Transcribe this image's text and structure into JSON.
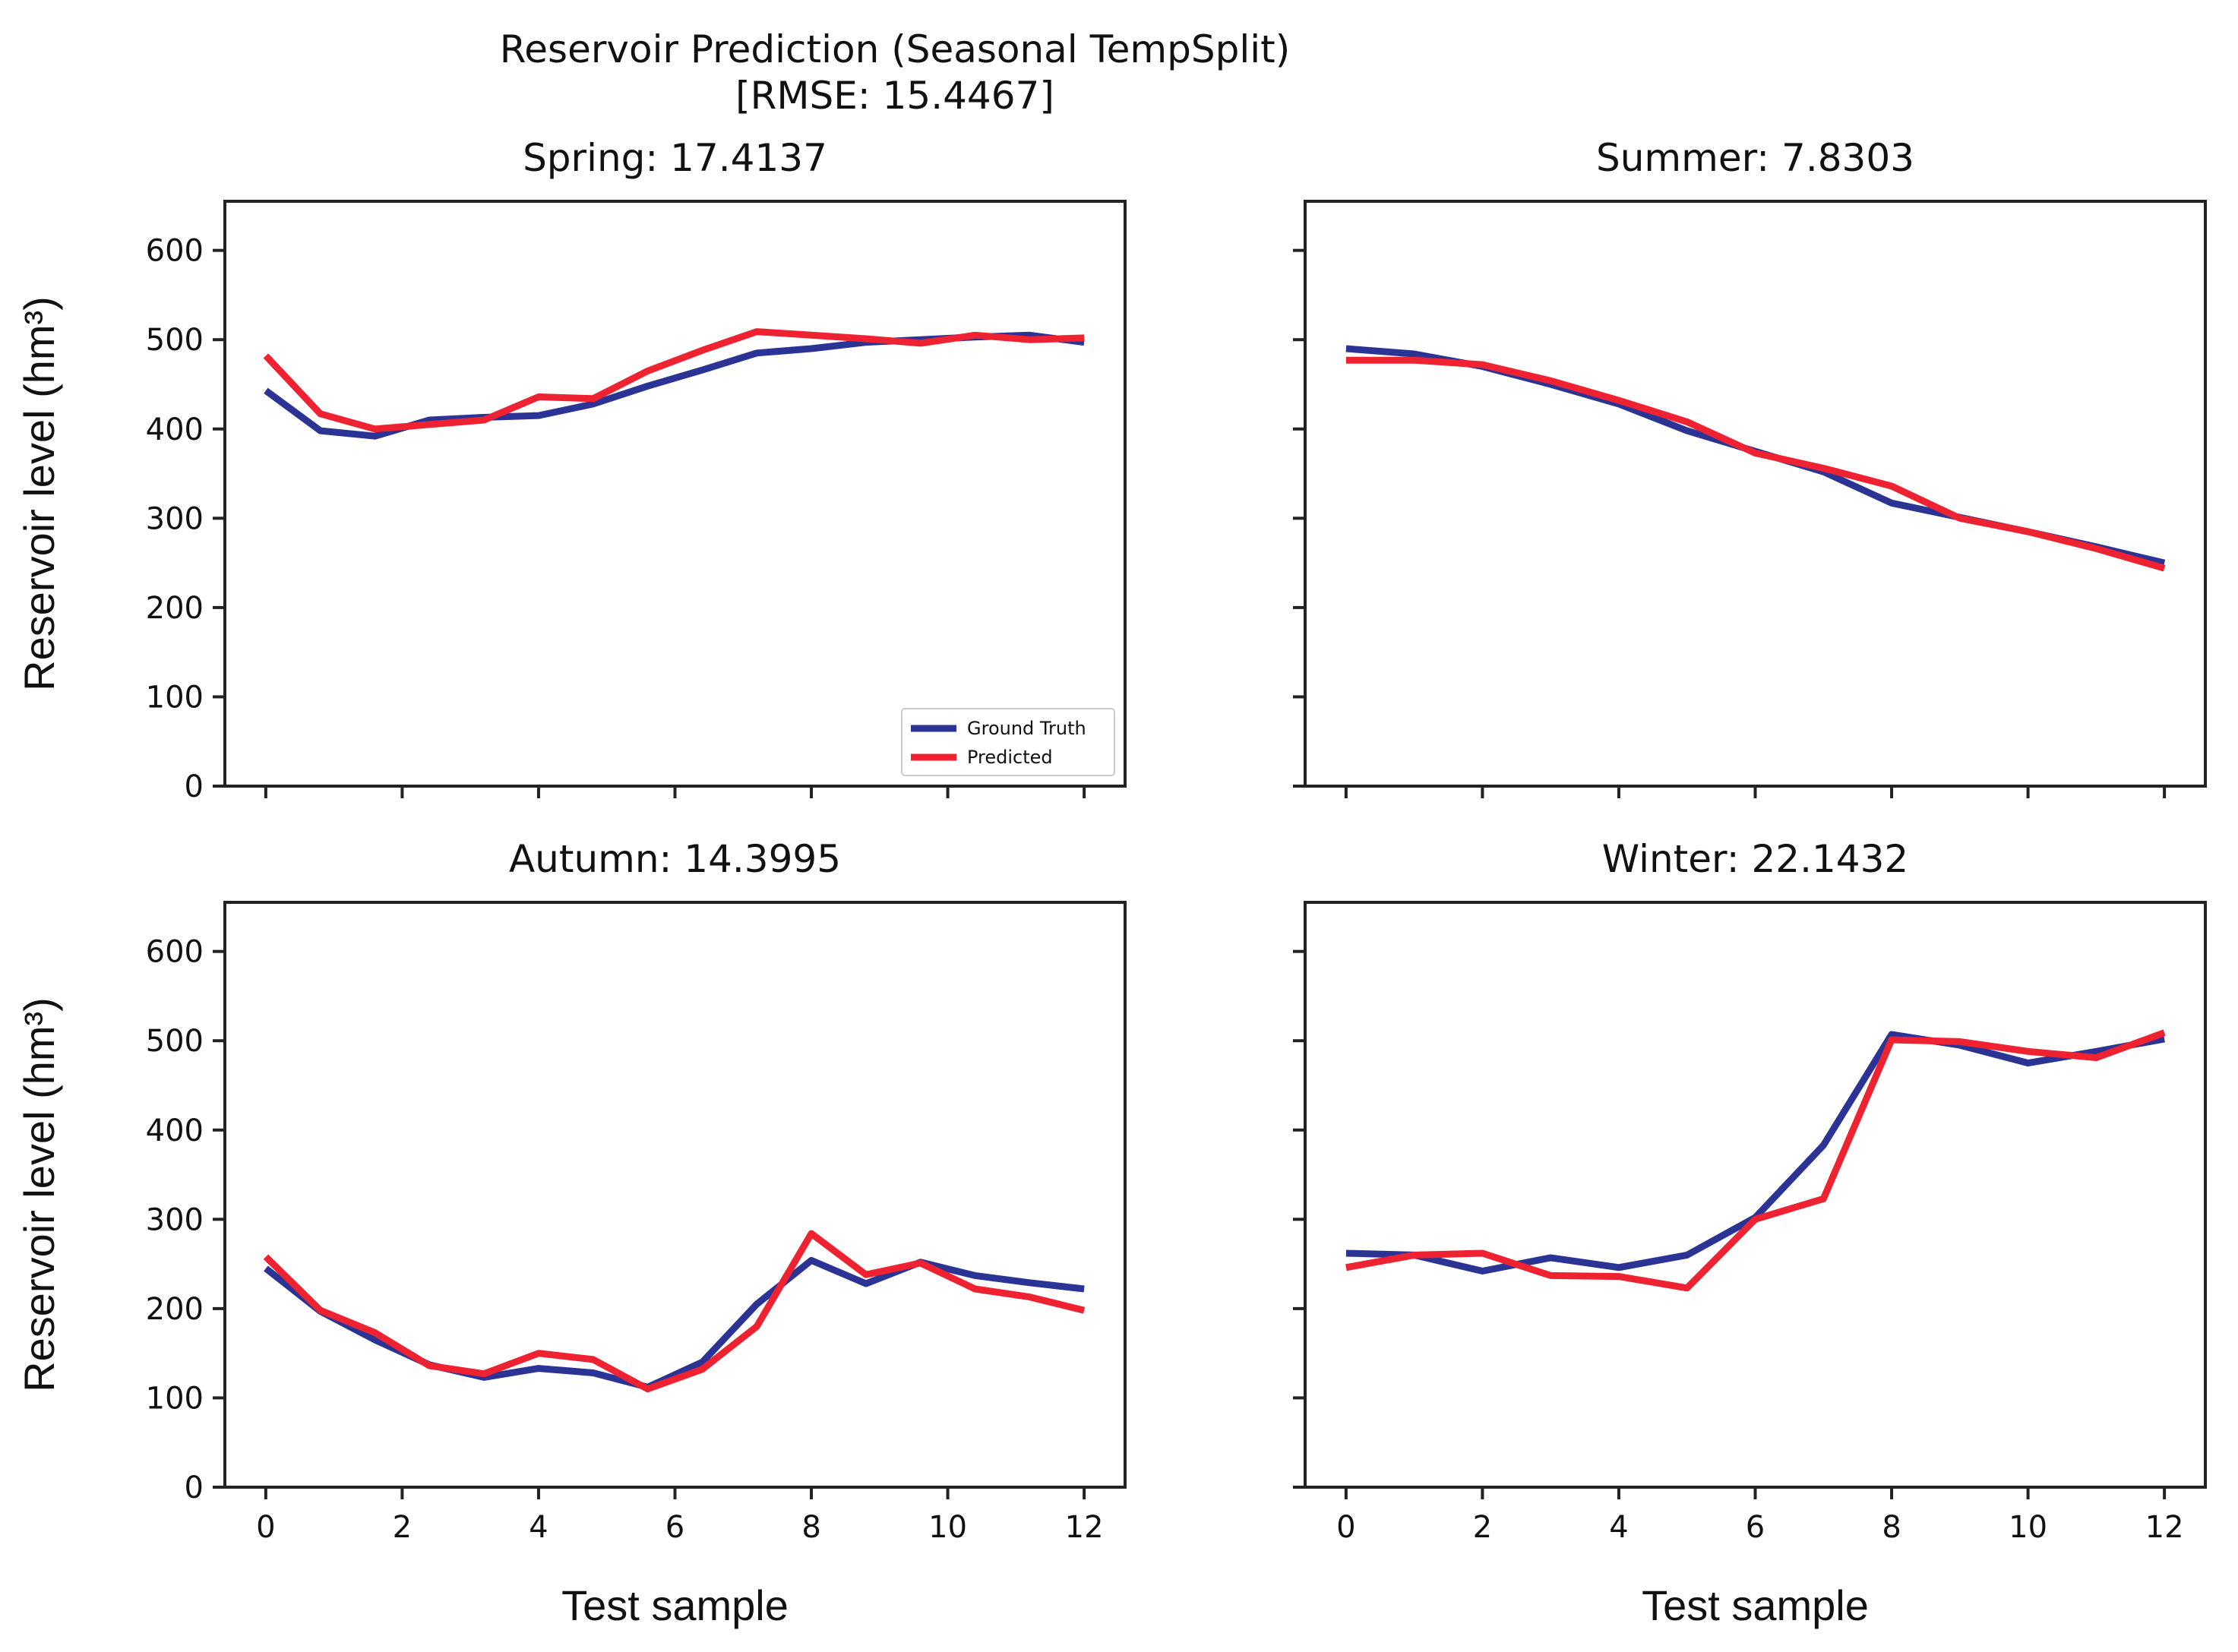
{
  "figure": {
    "title_line1": "Reservoir Prediction (Seasonal TempSplit)",
    "title_line2": "[RMSE: 15.4467]"
  },
  "colors": {
    "ground_truth": "#2b3494",
    "predicted": "#ee2230",
    "axis": "#222222"
  },
  "legend": {
    "ground_truth": "Ground Truth",
    "predicted": "Predicted"
  },
  "chart_data": [
    {
      "type": "line",
      "title": "Spring: 17.4137",
      "xlabel": "",
      "ylabel": "Reservoir level (hm³)",
      "xlim": [
        -0.6,
        12.6
      ],
      "ylim": [
        0,
        655
      ],
      "x": [
        0,
        0.8,
        1.6,
        2.4,
        3.2,
        4.0,
        4.8,
        5.6,
        6.4,
        7.2,
        8.0,
        8.8,
        9.6,
        10.4,
        11.2,
        12.0
      ],
      "series": [
        {
          "name": "Ground Truth",
          "values": [
            443,
            398,
            392,
            410,
            413,
            415,
            428,
            448,
            466,
            485,
            490,
            497,
            500,
            503,
            505,
            497
          ]
        },
        {
          "name": "Predicted",
          "values": [
            482,
            417,
            400,
            405,
            410,
            436,
            434,
            465,
            488,
            509,
            505,
            501,
            496,
            505,
            500,
            502
          ]
        }
      ],
      "xticks": [
        0,
        2,
        4,
        6,
        8,
        10,
        12
      ],
      "xtick_labels": [],
      "yticks": [
        0,
        100,
        200,
        300,
        400,
        500,
        600
      ],
      "ytick_labels": [
        "0",
        "100",
        "200",
        "300",
        "400",
        "500",
        "600"
      ],
      "legend_position": "lower-right"
    },
    {
      "type": "line",
      "title": "Summer: 7.8303",
      "xlabel": "",
      "ylabel": "",
      "xlim": [
        -0.6,
        12.6
      ],
      "ylim": [
        0,
        655
      ],
      "x": [
        0,
        1,
        2,
        3,
        4,
        5,
        6,
        7,
        8,
        9,
        10,
        11,
        12
      ],
      "series": [
        {
          "name": "Ground Truth",
          "values": [
            490,
            484,
            470,
            450,
            428,
            398,
            375,
            352,
            317,
            301,
            285,
            268,
            250
          ]
        },
        {
          "name": "Predicted",
          "values": [
            477,
            477,
            472,
            454,
            432,
            408,
            373,
            356,
            336,
            300,
            285,
            266,
            244
          ]
        }
      ],
      "xticks": [
        0,
        2,
        4,
        6,
        8,
        10,
        12
      ],
      "xtick_labels": [],
      "yticks": [
        0,
        100,
        200,
        300,
        400,
        500,
        600
      ],
      "ytick_labels": []
    },
    {
      "type": "line",
      "title": "Autumn: 14.3995",
      "xlabel": "Test sample",
      "ylabel": "Reservoir level (hm³)",
      "xlim": [
        -0.6,
        12.6
      ],
      "ylim": [
        0,
        655
      ],
      "x": [
        0,
        0.8,
        1.6,
        2.4,
        3.2,
        4.0,
        4.8,
        5.6,
        6.4,
        7.2,
        8.0,
        8.8,
        9.6,
        10.4,
        11.2,
        12.0
      ],
      "series": [
        {
          "name": "Ground Truth",
          "values": [
            245,
            197,
            165,
            137,
            123,
            133,
            128,
            112,
            140,
            205,
            254,
            228,
            252,
            237,
            229,
            222
          ]
        },
        {
          "name": "Predicted",
          "values": [
            258,
            198,
            173,
            136,
            127,
            150,
            143,
            110,
            132,
            180,
            284,
            238,
            251,
            222,
            213,
            198
          ]
        }
      ],
      "xticks": [
        0,
        2,
        4,
        6,
        8,
        10,
        12
      ],
      "xtick_labels": [
        "0",
        "2",
        "4",
        "6",
        "8",
        "10",
        "12"
      ],
      "yticks": [
        0,
        100,
        200,
        300,
        400,
        500,
        600
      ],
      "ytick_labels": [
        "0",
        "100",
        "200",
        "300",
        "400",
        "500",
        "600"
      ]
    },
    {
      "type": "line",
      "title": "Winter: 22.1432",
      "xlabel": "Test sample",
      "ylabel": "",
      "xlim": [
        -0.6,
        12.6
      ],
      "ylim": [
        0,
        655
      ],
      "x": [
        0,
        1,
        2,
        3,
        4,
        5,
        6,
        7,
        8,
        9,
        10,
        11,
        12
      ],
      "series": [
        {
          "name": "Ground Truth",
          "values": [
            262,
            260,
            242,
            257,
            246,
            260,
            302,
            383,
            507,
            495,
            475,
            488,
            502
          ]
        },
        {
          "name": "Predicted",
          "values": [
            246,
            260,
            262,
            237,
            236,
            223,
            300,
            323,
            501,
            499,
            488,
            481,
            509
          ]
        }
      ],
      "xticks": [
        0,
        2,
        4,
        6,
        8,
        10,
        12
      ],
      "xtick_labels": [
        "0",
        "2",
        "4",
        "6",
        "8",
        "10",
        "12"
      ],
      "yticks": [
        0,
        100,
        200,
        300,
        400,
        500,
        600
      ],
      "ytick_labels": []
    }
  ]
}
